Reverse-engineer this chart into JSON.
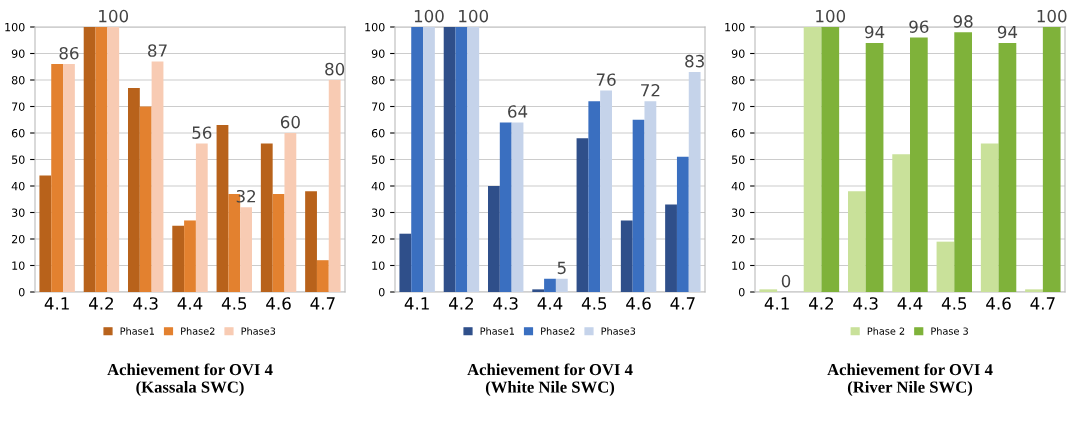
{
  "chart_data": [
    {
      "type": "bar",
      "title": "Achievement for OVI 4\n(Kassala SWC)",
      "categories": [
        "4.1",
        "4.2",
        "4.3",
        "4.4",
        "4.5",
        "4.6",
        "4.7"
      ],
      "ylim": [
        0,
        100
      ],
      "yticks": [
        0,
        10,
        20,
        30,
        40,
        50,
        60,
        70,
        80,
        90,
        100
      ],
      "grid": "y",
      "legend": "bottom",
      "series": [
        {
          "name": "Phase1",
          "color": "#b8621b",
          "values": [
            44,
            100,
            77,
            25,
            63,
            56,
            38
          ]
        },
        {
          "name": "Phase2",
          "color": "#e3812f",
          "values": [
            86,
            100,
            70,
            27,
            37,
            37,
            12
          ]
        },
        {
          "name": "Phase3",
          "color": "#f8cbb3",
          "values": [
            86,
            100,
            87,
            56,
            32,
            60,
            80
          ],
          "value_labels": [
            "86",
            "100",
            "87",
            "56",
            "32",
            "60",
            "80"
          ]
        }
      ]
    },
    {
      "type": "bar",
      "title": "Achievement for OVI 4\n(White Nile SWC)",
      "categories": [
        "4.1",
        "4.2",
        "4.3",
        "4.4",
        "4.5",
        "4.6",
        "4.7"
      ],
      "ylim": [
        0,
        100
      ],
      "yticks": [
        0,
        10,
        20,
        30,
        40,
        50,
        60,
        70,
        80,
        90,
        100
      ],
      "grid": "y",
      "legend": "bottom",
      "series": [
        {
          "name": "Phase1",
          "color": "#2f4f8a",
          "values": [
            22,
            100,
            40,
            1,
            58,
            27,
            33
          ]
        },
        {
          "name": "Phase2",
          "color": "#3a6fc0",
          "values": [
            100,
            100,
            64,
            5,
            72,
            65,
            51
          ]
        },
        {
          "name": "Phase3",
          "color": "#c5d3ea",
          "values": [
            100,
            100,
            64,
            5,
            76,
            72,
            83
          ],
          "value_labels": [
            "100",
            "100",
            "64",
            "5",
            "76",
            "72",
            "83"
          ]
        }
      ]
    },
    {
      "type": "bar",
      "title": "Achievement for OVI 4\n(River Nile SWC)",
      "categories": [
        "4.1",
        "4.2",
        "4.3",
        "4.4",
        "4.5",
        "4.6",
        "4.7"
      ],
      "ylim": [
        0,
        100
      ],
      "yticks": [
        0,
        10,
        20,
        30,
        40,
        50,
        60,
        70,
        80,
        90,
        100
      ],
      "grid": "y",
      "legend": "bottom",
      "series": [
        {
          "name": "Phase 2",
          "color": "#c9e19a",
          "values": [
            1,
            100,
            38,
            52,
            19,
            56,
            1
          ]
        },
        {
          "name": "Phase 3",
          "color": "#7fb23a",
          "values": [
            0,
            100,
            94,
            96,
            98,
            94,
            100
          ],
          "value_labels": [
            "0",
            "100",
            "94",
            "96",
            "98",
            "94",
            "100"
          ]
        }
      ]
    }
  ]
}
